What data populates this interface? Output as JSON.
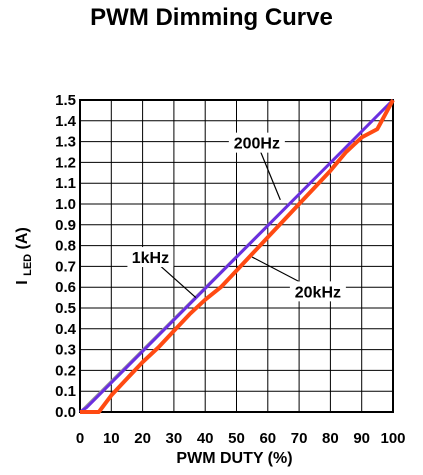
{
  "chart_data": {
    "type": "line",
    "title": "PWM Dimming Curve",
    "xlabel": "PWM DUTY (%)",
    "ylabel": {
      "main": "I",
      "sub": "LED",
      "suffix": " (A)"
    },
    "xlim": [
      0,
      100
    ],
    "ylim": [
      0,
      1.5
    ],
    "xticks": [
      0,
      10,
      20,
      30,
      40,
      50,
      60,
      70,
      80,
      90,
      100
    ],
    "xtick_labels": [
      "0",
      "10",
      "20",
      "30",
      "40",
      "50",
      "60",
      "70",
      "80",
      "90",
      "100"
    ],
    "yticks": [
      0,
      0.1,
      0.2,
      0.3,
      0.4,
      0.5,
      0.6,
      0.7,
      0.8,
      0.9,
      1.0,
      1.1,
      1.2,
      1.3,
      1.4,
      1.5
    ],
    "ytick_labels": [
      "0.0",
      "0.1",
      "0.2",
      "0.3",
      "0.4",
      "0.5",
      "0.6",
      "0.7",
      "0.8",
      "0.9",
      "1.0",
      "1.1",
      "1.2",
      "1.3",
      "1.4",
      "1.5"
    ],
    "grid": true,
    "series": [
      {
        "name": "200Hz",
        "color": "#9a9a9a",
        "x": [
          0,
          100
        ],
        "y": [
          0.0,
          1.5
        ]
      },
      {
        "name": "1kHz",
        "color": "#6a2fe0",
        "x": [
          0,
          2,
          100
        ],
        "y": [
          0.0,
          0.02,
          1.5
        ]
      },
      {
        "name": "20kHz",
        "color": "#ff4a12",
        "x": [
          0,
          6,
          10,
          15,
          20,
          25,
          30,
          35,
          40,
          45,
          50,
          55,
          60,
          65,
          70,
          75,
          80,
          85,
          90,
          95,
          100
        ],
        "y": [
          0.0,
          0.0,
          0.08,
          0.16,
          0.24,
          0.31,
          0.39,
          0.47,
          0.54,
          0.6,
          0.68,
          0.76,
          0.84,
          0.92,
          1.0,
          1.08,
          1.16,
          1.25,
          1.32,
          1.36,
          1.5
        ]
      }
    ],
    "annotations": [
      {
        "text": "200Hz",
        "x": 56.5,
        "y": 1.295,
        "arrow_to": [
          64,
          1.02
        ]
      },
      {
        "text": "1kHz",
        "x": 22.5,
        "y": 0.745,
        "arrow_to": [
          37,
          0.55
        ]
      },
      {
        "text": "20kHz",
        "x": 76,
        "y": 0.58,
        "arrow_to": [
          55,
          0.745
        ]
      }
    ]
  }
}
